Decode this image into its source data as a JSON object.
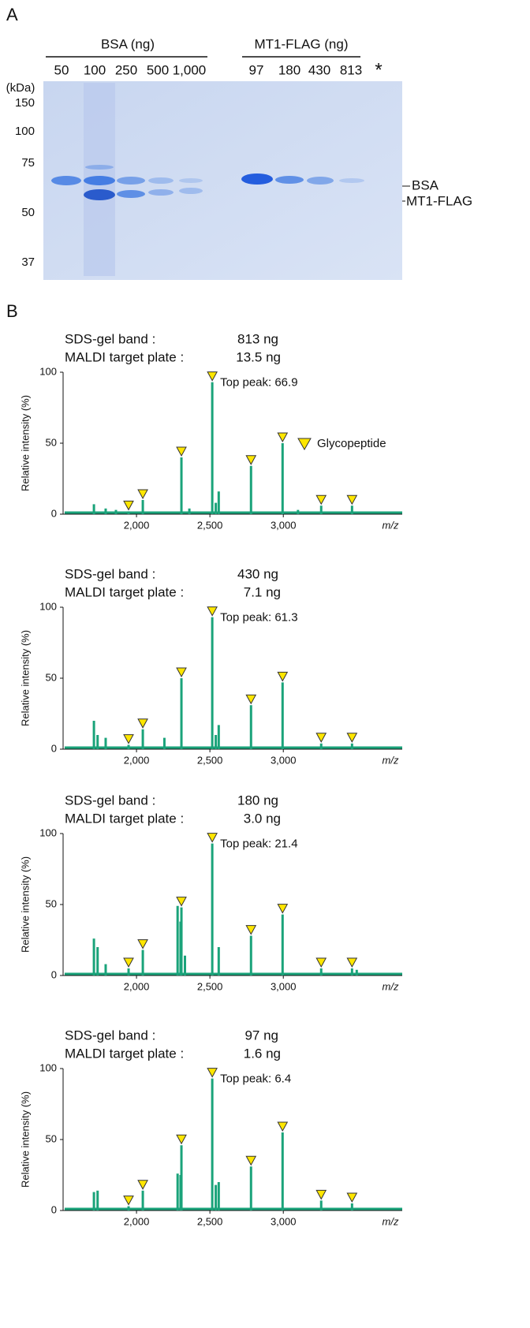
{
  "panel_a": {
    "label": "A",
    "bsa_label": "BSA (ng)",
    "bsa_lanes": [
      "50",
      "100",
      "250",
      "500",
      "1,000"
    ],
    "mt1_label": "MT1-FLAG (ng)",
    "mt1_lanes": [
      "97",
      "180",
      "430",
      "813"
    ],
    "asterisk": "*",
    "kda_label": "(kDa)",
    "markers": [
      150,
      100,
      75,
      50,
      37
    ],
    "band_labels": [
      "BSA",
      "MT1-FLAG"
    ]
  },
  "panel_b": {
    "label": "B"
  },
  "chart_data": [
    {
      "type": "spectrum",
      "header": [
        {
          "label": "SDS-gel band :",
          "value": "813 ng"
        },
        {
          "label": "MALDI target plate :",
          "value": "13.5 ng"
        }
      ],
      "annotation": "Top peak: 66.9",
      "ylabel": "Relative intensity (%)",
      "xlabel": "m/z",
      "xlim": [
        1500,
        3810
      ],
      "ylim": [
        0,
        100
      ],
      "xticks": [
        {
          "value": 2000,
          "label": "2,000"
        },
        {
          "value": 2500,
          "label": "2,500"
        },
        {
          "value": 3000,
          "label": "3,000"
        }
      ],
      "yticks": [
        0,
        50,
        100
      ],
      "color": "#1aa37a",
      "x": [
        1710,
        1790,
        1860,
        2360,
        2540,
        2560,
        3100
      ],
      "values": [
        7,
        4,
        3,
        4,
        8,
        16,
        3
      ],
      "series": [
        {
          "name": "Glycopeptide",
          "color": "#ffe600",
          "x": [
            1946,
            2043,
            2306,
            2516,
            2780,
            2995,
            3258,
            3468
          ],
          "values": [
            2,
            10,
            40,
            93,
            34,
            50,
            6,
            6
          ]
        }
      ]
    },
    {
      "type": "spectrum",
      "header": [
        {
          "label": "SDS-gel band :",
          "value": "430 ng"
        },
        {
          "label": "MALDI target plate :",
          "value": "7.1 ng"
        }
      ],
      "annotation": "Top peak: 61.3",
      "ylabel": "Relative intensity (%)",
      "xlabel": "m/z",
      "xlim": [
        1500,
        3810
      ],
      "ylim": [
        0,
        100
      ],
      "xticks": [
        {
          "value": 2000,
          "label": "2,000"
        },
        {
          "value": 2500,
          "label": "2,500"
        },
        {
          "value": 3000,
          "label": "3,000"
        }
      ],
      "yticks": [
        0,
        50,
        100
      ],
      "color": "#1aa37a",
      "x": [
        1710,
        1735,
        1790,
        2190,
        2540,
        2560
      ],
      "values": [
        20,
        10,
        8,
        8,
        10,
        17
      ],
      "series": [
        {
          "color": "#ffe600",
          "x": [
            1946,
            2043,
            2306,
            2516,
            2780,
            2995,
            3258,
            3468
          ],
          "values": [
            3,
            14,
            50,
            93,
            31,
            47,
            4,
            4
          ]
        }
      ]
    },
    {
      "type": "spectrum",
      "header": [
        {
          "label": "SDS-gel band :",
          "value": "180 ng"
        },
        {
          "label": "MALDI target plate :",
          "value": "3.0 ng"
        }
      ],
      "annotation": "Top peak: 21.4",
      "ylabel": "Relative intensity (%)",
      "xlabel": "m/z",
      "xlim": [
        1500,
        3810
      ],
      "ylim": [
        0,
        100
      ],
      "xticks": [
        {
          "value": 2000,
          "label": "2,000"
        },
        {
          "value": 2500,
          "label": "2,500"
        },
        {
          "value": 3000,
          "label": "3,000"
        }
      ],
      "yticks": [
        0,
        50,
        100
      ],
      "color": "#1aa37a",
      "x": [
        1710,
        1735,
        1790,
        2280,
        2300,
        2330,
        2560,
        3500
      ],
      "values": [
        26,
        20,
        8,
        49,
        38,
        14,
        20,
        4
      ],
      "series": [
        {
          "color": "#ffe600",
          "x": [
            1946,
            2043,
            2306,
            2516,
            2780,
            2995,
            3258,
            3468
          ],
          "values": [
            5,
            18,
            48,
            93,
            28,
            43,
            5,
            5
          ]
        }
      ]
    },
    {
      "type": "spectrum",
      "header": [
        {
          "label": "SDS-gel band :",
          "value": "97 ng"
        },
        {
          "label": "MALDI target plate :",
          "value": "1.6 ng"
        }
      ],
      "annotation": "Top peak: 6.4",
      "ylabel": "Relative intensity (%)",
      "xlabel": "m/z",
      "xlim": [
        1500,
        3810
      ],
      "ylim": [
        0,
        100
      ],
      "xticks": [
        {
          "value": 2000,
          "label": "2,000"
        },
        {
          "value": 2500,
          "label": "2,500"
        },
        {
          "value": 3000,
          "label": "3,000"
        }
      ],
      "yticks": [
        0,
        50,
        100
      ],
      "color": "#1aa37a",
      "x": [
        1710,
        1735,
        2280,
        2300,
        2540,
        2560
      ],
      "values": [
        13,
        14,
        26,
        25,
        18,
        20
      ],
      "series": [
        {
          "color": "#ffe600",
          "x": [
            1946,
            2043,
            2306,
            2516,
            2780,
            2995,
            3258,
            3468
          ],
          "values": [
            3,
            14,
            46,
            93,
            31,
            55,
            7,
            5
          ]
        }
      ]
    }
  ]
}
